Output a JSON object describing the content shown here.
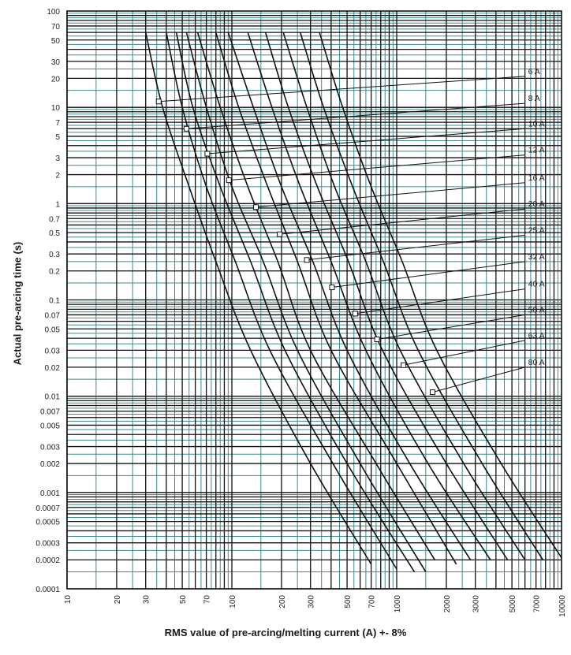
{
  "chart_data": {
    "type": "line",
    "title": "",
    "xlabel": "RMS value of pre-arcing/melting current (A) +- 8%",
    "ylabel": "Actual pre-arcing time (s)",
    "x_scale": "log",
    "y_scale": "log",
    "xlim": [
      10,
      10000
    ],
    "ylim": [
      0.0001,
      100
    ],
    "grid": true,
    "x_tick_labels": [
      "10",
      "20",
      "30",
      "50",
      "70",
      "100",
      "200",
      "300",
      "500",
      "700",
      "1000",
      "2000",
      "3000",
      "5000",
      "7000",
      "10000"
    ],
    "y_tick_labels": [
      "100",
      "70",
      "50",
      "30",
      "20",
      "10",
      "7",
      "5",
      "3",
      "2",
      "1",
      "0.7",
      "0.5",
      "0.3",
      "0.2",
      "0.1",
      "0.07",
      "0.05",
      "0.03",
      "0.02",
      "0.01",
      "0.007",
      "0.005",
      "0.003",
      "0.002",
      "0.001",
      "0.0007",
      "0.0005",
      "0.0003",
      "0.0002",
      "0.0001"
    ],
    "series": [
      {
        "name": "6 A",
        "points": [
          [
            30,
            60
          ],
          [
            38,
            10
          ],
          [
            55,
            1.5
          ],
          [
            80,
            0.25
          ],
          [
            130,
            0.03
          ],
          [
            300,
            0.002
          ],
          [
            700,
            0.00018
          ]
        ],
        "marker": [
          36,
          11.5
        ],
        "label_at": [
          6000,
          21
        ]
      },
      {
        "name": "8 A",
        "points": [
          [
            40,
            60
          ],
          [
            50,
            10
          ],
          [
            70,
            1.5
          ],
          [
            105,
            0.25
          ],
          [
            170,
            0.03
          ],
          [
            410,
            0.002
          ],
          [
            1000,
            0.00016
          ]
        ],
        "marker": [
          53,
          6
        ],
        "label_at": [
          6000,
          11
        ]
      },
      {
        "name": "10 A",
        "points": [
          [
            46,
            60
          ],
          [
            58,
            10
          ],
          [
            85,
            1.5
          ],
          [
            130,
            0.25
          ],
          [
            210,
            0.03
          ],
          [
            500,
            0.002
          ],
          [
            1280,
            0.00015
          ]
        ],
        "marker": [
          71,
          3.3
        ],
        "label_at": [
          6000,
          6
        ]
      },
      {
        "name": "12 A",
        "points": [
          [
            53,
            60
          ],
          [
            70,
            10
          ],
          [
            100,
            1.5
          ],
          [
            155,
            0.25
          ],
          [
            250,
            0.03
          ],
          [
            600,
            0.002
          ],
          [
            1500,
            0.00015
          ]
        ],
        "marker": [
          96,
          1.75
        ],
        "label_at": [
          6000,
          3.2
        ]
      },
      {
        "name": "16 A",
        "points": [
          [
            62,
            60
          ],
          [
            85,
            10
          ],
          [
            125,
            1.5
          ],
          [
            190,
            0.25
          ],
          [
            300,
            0.03
          ],
          [
            750,
            0.002
          ],
          [
            1700,
            0.0002
          ]
        ],
        "marker": [
          140,
          0.92
        ],
        "label_at": [
          6000,
          1.65
        ]
      },
      {
        "name": "20 A",
        "points": [
          [
            80,
            60
          ],
          [
            110,
            10
          ],
          [
            165,
            1.5
          ],
          [
            250,
            0.25
          ],
          [
            400,
            0.03
          ],
          [
            1000,
            0.002
          ],
          [
            2300,
            0.00018
          ]
        ],
        "marker": [
          195,
          0.48
        ],
        "label_at": [
          6000,
          0.88
        ]
      },
      {
        "name": "25 A",
        "points": [
          [
            95,
            60
          ],
          [
            135,
            10
          ],
          [
            200,
            1.5
          ],
          [
            310,
            0.25
          ],
          [
            500,
            0.03
          ],
          [
            1200,
            0.002
          ],
          [
            2800,
            0.0002
          ]
        ],
        "marker": [
          285,
          0.26
        ],
        "label_at": [
          6000,
          0.47
        ]
      },
      {
        "name": "32 A",
        "points": [
          [
            125,
            60
          ],
          [
            175,
            10
          ],
          [
            260,
            1.5
          ],
          [
            400,
            0.25
          ],
          [
            650,
            0.03
          ],
          [
            1550,
            0.002
          ],
          [
            3700,
            0.0002
          ]
        ],
        "marker": [
          405,
          0.135
        ],
        "label_at": [
          6000,
          0.25
        ]
      },
      {
        "name": "40 A",
        "points": [
          [
            160,
            60
          ],
          [
            220,
            10
          ],
          [
            330,
            1.5
          ],
          [
            510,
            0.25
          ],
          [
            820,
            0.03
          ],
          [
            2000,
            0.002
          ],
          [
            4700,
            0.0002
          ]
        ],
        "marker": [
          560,
          0.072
        ],
        "label_at": [
          6000,
          0.13
        ]
      },
      {
        "name": "50 A",
        "points": [
          [
            205,
            60
          ],
          [
            285,
            10
          ],
          [
            420,
            1.5
          ],
          [
            650,
            0.25
          ],
          [
            1050,
            0.03
          ],
          [
            2550,
            0.002
          ],
          [
            6000,
            0.0002
          ]
        ],
        "marker": [
          760,
          0.039
        ],
        "label_at": [
          6000,
          0.07
        ]
      },
      {
        "name": "63 A",
        "points": [
          [
            260,
            60
          ],
          [
            360,
            10
          ],
          [
            540,
            1.5
          ],
          [
            830,
            0.25
          ],
          [
            1350,
            0.03
          ],
          [
            3300,
            0.002
          ],
          [
            7700,
            0.0002
          ]
        ],
        "marker": [
          1100,
          0.021
        ],
        "label_at": [
          6000,
          0.038
        ]
      },
      {
        "name": "80 A",
        "points": [
          [
            340,
            60
          ],
          [
            470,
            10
          ],
          [
            700,
            1.5
          ],
          [
            1080,
            0.25
          ],
          [
            1750,
            0.03
          ],
          [
            4300,
            0.002
          ],
          [
            10000,
            0.00021
          ]
        ],
        "marker": [
          1650,
          0.011
        ],
        "label_at": [
          6000,
          0.02
        ]
      }
    ]
  }
}
